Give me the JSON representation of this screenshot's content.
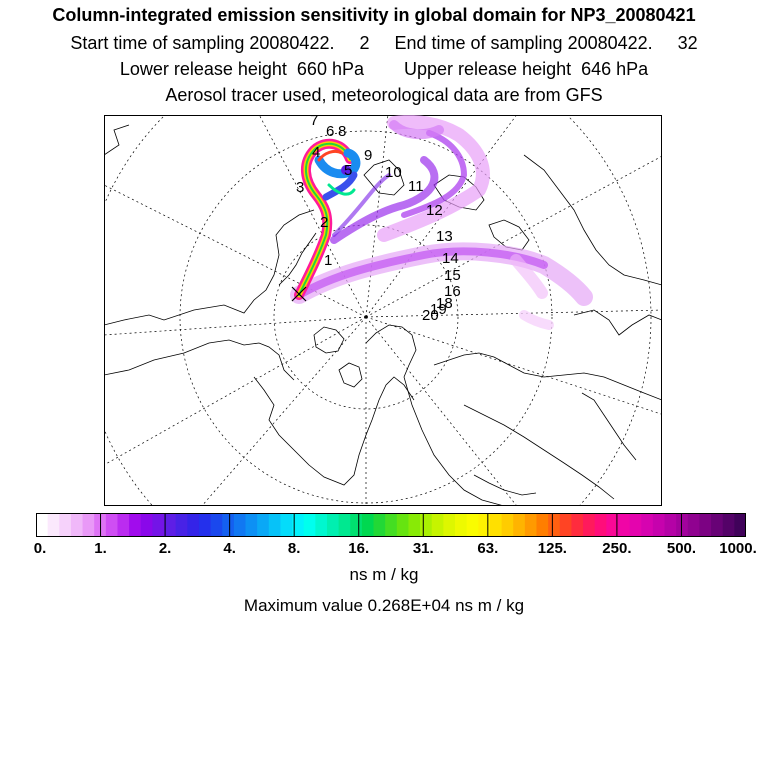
{
  "header": {
    "title": "Column-integrated emission sensitivity in global domain for NP3_20080421",
    "sampling": "Start time of sampling 20080422.     2     End time of sampling 20080422.     32",
    "release": "Lower release height  660 hPa        Upper release height  646 hPa",
    "tracer": "Aerosol tracer used, meteorological data are from GFS"
  },
  "map": {
    "trajectory_labels": [
      "7",
      "6",
      "8",
      "4",
      "9",
      "5",
      "10",
      "3",
      "11",
      "12",
      "2",
      "13",
      "1",
      "14",
      "15",
      "16",
      "18",
      "19",
      "20"
    ]
  },
  "colorbar": {
    "tick_labels": [
      "0.",
      "1.",
      "2.",
      "4.",
      "8.",
      "16.",
      "31.",
      "63.",
      "125.",
      "250.",
      "500.",
      "1000."
    ],
    "colors": [
      "#ffffff",
      "#fbe9fd",
      "#f6d2fb",
      "#f0b8f9",
      "#e999f7",
      "#de73f5",
      "#cf4ef3",
      "#bb2cf0",
      "#a10ced",
      "#8a08ea",
      "#7414e7",
      "#5e1ee6",
      "#4822e6",
      "#3424e8",
      "#2430ec",
      "#1a48ee",
      "#1460f0",
      "#1178f2",
      "#0d90f4",
      "#0aa8f6",
      "#07c2f8",
      "#04dcfa",
      "#02f2fc",
      "#00ffee",
      "#00f7cf",
      "#00efb0",
      "#00e890",
      "#00e070",
      "#00d850",
      "#22d836",
      "#44de22",
      "#66e410",
      "#88ea06",
      "#aaf002",
      "#c6f400",
      "#ddf700",
      "#eefa00",
      "#fafc00",
      "#fff200",
      "#ffe000",
      "#ffcc00",
      "#ffb400",
      "#ff9a00",
      "#ff7e00",
      "#ff6010",
      "#ff4424",
      "#ff2c3e",
      "#ff1a5c",
      "#ff0d7a",
      "#fa0896",
      "#f005a6",
      "#e404ae",
      "#d603b0",
      "#c602ad",
      "#b402a6",
      "#a2029c",
      "#900290",
      "#7c0283",
      "#680276",
      "#540268",
      "#40025a"
    ],
    "units": "ns m / kg",
    "max_value": "Maximum value  0.268E+04 ns m / kg"
  }
}
